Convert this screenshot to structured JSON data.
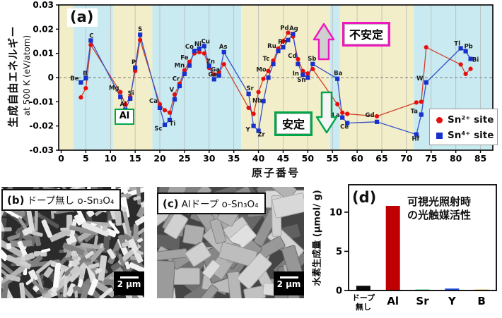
{
  "panels": {
    "a": {
      "tag": "(a)"
    },
    "b": {
      "tag": "(b)",
      "title": "ドープ無し o-Sn₃O₄",
      "scalebar": "2 μm"
    },
    "c": {
      "tag": "(c)",
      "title": "Alドープ o-Sn₃O₄",
      "scalebar": "2 μm"
    },
    "d": {
      "tag": "(d)"
    }
  },
  "colors": {
    "band_yellow": "#f2eec9",
    "band_cyan": "#c8eaf0",
    "sn2_marker": "#e60e0e",
    "sn2_line": "#d2402a",
    "sn4_marker": "#1830cc",
    "sn4_line": "#3450c8",
    "unstable_accent": "#ee18c0",
    "stable_accent": "#00a64a"
  },
  "chart_data": [
    {
      "id": "a",
      "type": "line",
      "title": "(a)",
      "xlabel": "原子番号",
      "ylabel": "生成自由エネルギー",
      "ylabel_sub": "at 500 K (eV/atom)",
      "xlim": [
        -0.5,
        87.5
      ],
      "ylim": [
        -0.03,
        0.03
      ],
      "xticks": [
        0,
        5,
        10,
        15,
        20,
        25,
        30,
        35,
        40,
        45,
        50,
        55,
        60,
        65,
        70,
        75,
        80,
        85
      ],
      "yticks": [
        0.03,
        0.02,
        0.01,
        0,
        -0.01,
        -0.02,
        -0.03
      ],
      "ytick_labels": [
        "0.03",
        "0.02",
        "0.01",
        "0",
        "-0.01",
        "-0.02",
        "-0.03"
      ],
      "zero_line_dashed": true,
      "grid": "vertical",
      "legend_position": "lower-right",
      "annotations": {
        "unstable": "不安定",
        "stable": "安定",
        "al": "Al"
      },
      "bands": [
        [
          -0.5,
          2.5,
          "y"
        ],
        [
          2.5,
          10.5,
          "c"
        ],
        [
          10.5,
          18.5,
          "y"
        ],
        [
          18.5,
          36.5,
          "c"
        ],
        [
          36.5,
          54.5,
          "y"
        ],
        [
          54.5,
          56.5,
          "c"
        ],
        [
          56.5,
          71.5,
          "y"
        ],
        [
          71.5,
          87.5,
          "c"
        ]
      ],
      "series": [
        {
          "name": "Sn²⁺ site",
          "marker": "circle",
          "color": "#e60e0e",
          "line_color": "#d2402a"
        },
        {
          "name": "Sn⁴⁺ site",
          "marker": "square",
          "color": "#1830cc",
          "line_color": "#3450c8"
        }
      ],
      "points_format": [
        "element",
        "atomic_number",
        "sn2_eV",
        "sn4_eV",
        "label_ref",
        "label_dx",
        "label_dy"
      ],
      "points": [
        [
          "Be",
          4,
          -0.0082,
          -0.002,
          "b",
          -9,
          -3
        ],
        [
          "B",
          5,
          -0.0044,
          -0.0003,
          "b",
          -1,
          -4
        ],
        [
          "C",
          6,
          0.0135,
          0.0153,
          "b",
          1,
          -4
        ],
        [
          "Mg",
          12,
          -0.006,
          -0.008,
          "r",
          -9,
          -3
        ],
        [
          "Al",
          13,
          -0.0112,
          -0.0133,
          "b",
          -3,
          -5
        ],
        [
          "Si",
          14,
          -0.008,
          -0.0087,
          "b",
          1,
          -5
        ],
        [
          "P",
          15,
          0.0027,
          0.0041,
          "b",
          -2,
          -5
        ],
        [
          "S",
          16,
          0.0155,
          0.0177,
          "b",
          0,
          -5
        ],
        [
          "Ca",
          20,
          -0.011,
          -0.0125,
          "r",
          -9,
          -2
        ],
        [
          "Sc",
          21,
          -0.0135,
          -0.0195,
          "b",
          -9,
          8
        ],
        [
          "Ti",
          22,
          -0.0145,
          -0.0175,
          "b",
          4,
          8
        ],
        [
          "V",
          23,
          -0.007,
          -0.009,
          "r",
          -4,
          -4
        ],
        [
          "Cr",
          24,
          -0.0025,
          -0.0035,
          "r",
          -5,
          -4
        ],
        [
          "Mn",
          25,
          0.003,
          0.0015,
          "r",
          -7,
          -4
        ],
        [
          "Fe",
          26,
          0.0065,
          0.005,
          "r",
          -7,
          -3
        ],
        [
          "Co",
          27,
          0.01,
          0.011,
          "b",
          -7,
          -3
        ],
        [
          "Ni",
          28,
          0.0105,
          0.012,
          "b",
          -2,
          -4
        ],
        [
          "Cu",
          29,
          0.01,
          0.013,
          "b",
          2,
          -4
        ],
        [
          "Zn",
          30,
          0.004,
          0.0047,
          "b",
          2,
          -4
        ],
        [
          "Ga",
          31,
          0.0013,
          -0.0007,
          "r",
          2,
          -4
        ],
        [
          "Ge",
          32,
          0.0022,
          0.0008,
          "r",
          -9,
          6
        ],
        [
          "As",
          33,
          0.0055,
          0.0105,
          "b",
          -1,
          -5
        ],
        [
          "Sr",
          38,
          -0.0125,
          -0.0067,
          "b",
          2,
          -5
        ],
        [
          "Y",
          39,
          -0.015,
          -0.02,
          "b",
          -8,
          8
        ],
        [
          "Zr",
          40,
          -0.006,
          -0.022,
          "b",
          4,
          8
        ],
        [
          "Nb",
          41,
          -0.0005,
          -0.0097,
          "b",
          -9,
          2
        ],
        [
          "Mo",
          42,
          0.0027,
          0.0,
          "r",
          -10,
          1
        ],
        [
          "Tc",
          43,
          0.007,
          0.0056,
          "r",
          -10,
          0
        ],
        [
          "Ru",
          44,
          0.012,
          0.011,
          "r",
          -9,
          -1
        ],
        [
          "Rh",
          45,
          0.015,
          0.0125,
          "b",
          -1,
          -5
        ],
        [
          "Pd",
          46,
          0.0185,
          0.0155,
          "r",
          -5,
          -4
        ],
        [
          "Ag",
          47,
          0.017,
          0.018,
          "b",
          1,
          -5
        ],
        [
          "Cd",
          48,
          0.0076,
          0.0056,
          "r",
          -8,
          -2
        ],
        [
          "In",
          49,
          0.0027,
          0.0012,
          "b",
          -10,
          1
        ],
        [
          "Sn",
          50,
          0.0017,
          0.0,
          "b",
          -9,
          6
        ],
        [
          "Sb",
          51,
          0.0035,
          0.0056,
          "b",
          -1,
          -5
        ],
        [
          "Ba",
          56,
          -0.011,
          -0.0005,
          "b",
          1,
          -5
        ],
        [
          "La",
          57,
          -0.0145,
          -0.0165,
          "r",
          -9,
          6
        ],
        [
          "Ce",
          58,
          -0.015,
          -0.0188,
          "b",
          -4,
          8
        ],
        [
          "Gd",
          64,
          -0.016,
          -0.0183,
          "r",
          -10,
          1
        ],
        [
          "Hf",
          72,
          -0.0103,
          -0.0235,
          "b",
          -1,
          9
        ],
        [
          "Ta",
          73,
          -0.01,
          -0.0153,
          "b",
          -10,
          -2
        ],
        [
          "W",
          74,
          0.0125,
          -0.002,
          "b",
          -9,
          -3
        ],
        [
          "Tl",
          81,
          0.0054,
          0.0121,
          "b",
          -5,
          -4
        ],
        [
          "Pb",
          82,
          0.0015,
          0.0109,
          "b",
          4,
          -4
        ],
        [
          "Bi",
          83,
          0.0036,
          0.0077,
          "b",
          7,
          4
        ]
      ]
    },
    {
      "id": "d",
      "type": "bar",
      "title_lines": [
        "可視光照射時",
        "の光触媒活性"
      ],
      "ylabel": "水素生成量 (μmol/ g)",
      "categories": [
        "ドープ\n無し",
        "Al",
        "Sr",
        "Y",
        "B"
      ],
      "emphasis": [
        false,
        true,
        true,
        true,
        true
      ],
      "values": [
        0.6,
        10.8,
        0.12,
        0.25,
        0.12
      ],
      "colors": [
        "#0a0a0a",
        "#c00000",
        "#00b050",
        "#2050e0",
        "#d4a800"
      ],
      "yticks": [
        0,
        5,
        10
      ],
      "ylim": [
        0,
        13.5
      ],
      "grid": "off"
    }
  ]
}
